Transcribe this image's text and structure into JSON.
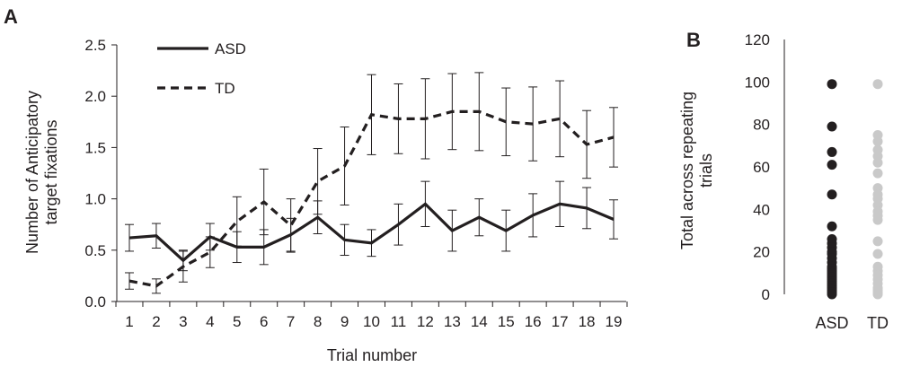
{
  "chart_data": [
    {
      "panel": "A",
      "type": "line",
      "xlabel": "Trial number",
      "ylabel": "Number of Anticipatory target fixations",
      "x": [
        1,
        2,
        3,
        4,
        5,
        6,
        7,
        8,
        9,
        10,
        11,
        12,
        13,
        14,
        15,
        16,
        17,
        18,
        19
      ],
      "ylim": [
        0,
        2.5
      ],
      "yticks": [
        "0.0",
        "0.5",
        "1.0",
        "1.5",
        "2.0",
        "2.5"
      ],
      "series": [
        {
          "name": "ASD",
          "line_style": "solid",
          "values": [
            0.62,
            0.64,
            0.4,
            0.63,
            0.53,
            0.53,
            0.65,
            0.82,
            0.6,
            0.57,
            0.75,
            0.95,
            0.69,
            0.82,
            0.69,
            0.84,
            0.95,
            0.91,
            0.8
          ],
          "error": [
            0.13,
            0.12,
            0.1,
            0.13,
            0.15,
            0.17,
            0.16,
            0.16,
            0.15,
            0.13,
            0.2,
            0.22,
            0.2,
            0.18,
            0.2,
            0.21,
            0.22,
            0.2,
            0.19
          ]
        },
        {
          "name": "TD",
          "line_style": "dashed",
          "values": [
            0.2,
            0.15,
            0.34,
            0.48,
            0.78,
            0.97,
            0.74,
            1.17,
            1.32,
            1.82,
            1.78,
            1.78,
            1.85,
            1.85,
            1.75,
            1.73,
            1.78,
            1.53,
            1.6
          ],
          "error": [
            0.08,
            0.07,
            0.15,
            0.15,
            0.24,
            0.32,
            0.26,
            0.32,
            0.38,
            0.39,
            0.34,
            0.39,
            0.37,
            0.38,
            0.33,
            0.36,
            0.37,
            0.33,
            0.29
          ]
        }
      ],
      "legend": "top-left"
    },
    {
      "panel": "B",
      "type": "scatter",
      "ylabel": "Total across repeating trials",
      "categories": [
        "ASD",
        "TD"
      ],
      "ylim": [
        0,
        120
      ],
      "yticks": [
        "0",
        "20",
        "40",
        "60",
        "80",
        "100",
        "120"
      ],
      "series": [
        {
          "name": "ASD",
          "color": "#231f20",
          "values": [
            99,
            79,
            67,
            61,
            47,
            32,
            26,
            24,
            22,
            20,
            19,
            17,
            15,
            13,
            12,
            11,
            10,
            9,
            8,
            7,
            6,
            5,
            4,
            3,
            2,
            1,
            0
          ]
        },
        {
          "name": "TD",
          "color": "#c9c9c9",
          "values": [
            99,
            75,
            72,
            68,
            65,
            62,
            57,
            50,
            47,
            45,
            42,
            39,
            37,
            35,
            25,
            19,
            13,
            11,
            9,
            7,
            5,
            3,
            2,
            1,
            0
          ]
        }
      ]
    }
  ],
  "labels": {
    "panel_a": "A",
    "panel_b": "B",
    "ylabel_a_line1": "Number of Anticipatory",
    "ylabel_a_line2": "target fixations",
    "ylabel_b_line1": "Total across repeating",
    "ylabel_b_line2": "trials"
  }
}
